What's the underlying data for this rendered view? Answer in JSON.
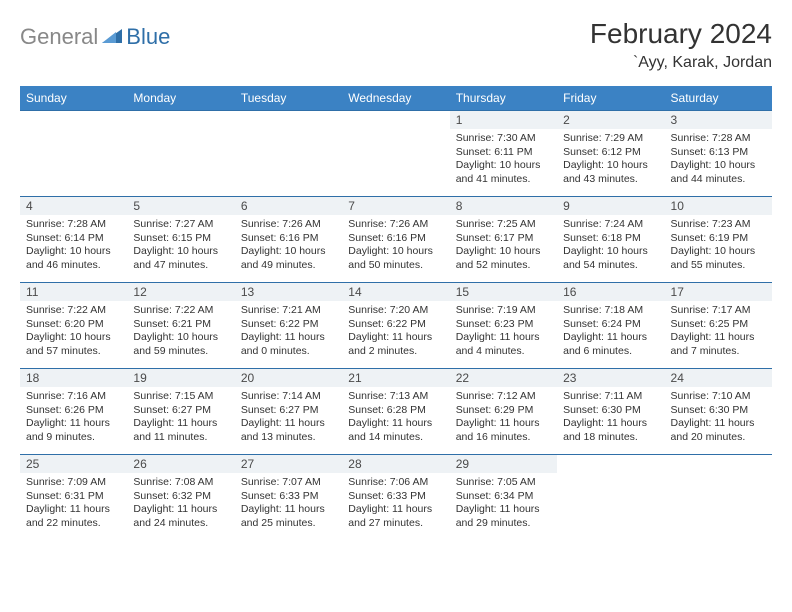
{
  "brand": {
    "text1": "General",
    "text2": "Blue",
    "icon_color": "#2f6fa8",
    "text1_color": "#888888",
    "text2_color": "#2f6fa8"
  },
  "title": "February 2024",
  "location": "`Ayy, Karak, Jordan",
  "colors": {
    "header_bg": "#3b82c4",
    "header_text": "#ffffff",
    "row_border": "#2f6fa8",
    "daynum_bg": "#eef2f5",
    "body_text": "#333333"
  },
  "day_names": [
    "Sunday",
    "Monday",
    "Tuesday",
    "Wednesday",
    "Thursday",
    "Friday",
    "Saturday"
  ],
  "weeks": [
    [
      {
        "n": "",
        "sr": "",
        "ss": "",
        "dl": ""
      },
      {
        "n": "",
        "sr": "",
        "ss": "",
        "dl": ""
      },
      {
        "n": "",
        "sr": "",
        "ss": "",
        "dl": ""
      },
      {
        "n": "",
        "sr": "",
        "ss": "",
        "dl": ""
      },
      {
        "n": "1",
        "sr": "Sunrise: 7:30 AM",
        "ss": "Sunset: 6:11 PM",
        "dl": "Daylight: 10 hours and 41 minutes."
      },
      {
        "n": "2",
        "sr": "Sunrise: 7:29 AM",
        "ss": "Sunset: 6:12 PM",
        "dl": "Daylight: 10 hours and 43 minutes."
      },
      {
        "n": "3",
        "sr": "Sunrise: 7:28 AM",
        "ss": "Sunset: 6:13 PM",
        "dl": "Daylight: 10 hours and 44 minutes."
      }
    ],
    [
      {
        "n": "4",
        "sr": "Sunrise: 7:28 AM",
        "ss": "Sunset: 6:14 PM",
        "dl": "Daylight: 10 hours and 46 minutes."
      },
      {
        "n": "5",
        "sr": "Sunrise: 7:27 AM",
        "ss": "Sunset: 6:15 PM",
        "dl": "Daylight: 10 hours and 47 minutes."
      },
      {
        "n": "6",
        "sr": "Sunrise: 7:26 AM",
        "ss": "Sunset: 6:16 PM",
        "dl": "Daylight: 10 hours and 49 minutes."
      },
      {
        "n": "7",
        "sr": "Sunrise: 7:26 AM",
        "ss": "Sunset: 6:16 PM",
        "dl": "Daylight: 10 hours and 50 minutes."
      },
      {
        "n": "8",
        "sr": "Sunrise: 7:25 AM",
        "ss": "Sunset: 6:17 PM",
        "dl": "Daylight: 10 hours and 52 minutes."
      },
      {
        "n": "9",
        "sr": "Sunrise: 7:24 AM",
        "ss": "Sunset: 6:18 PM",
        "dl": "Daylight: 10 hours and 54 minutes."
      },
      {
        "n": "10",
        "sr": "Sunrise: 7:23 AM",
        "ss": "Sunset: 6:19 PM",
        "dl": "Daylight: 10 hours and 55 minutes."
      }
    ],
    [
      {
        "n": "11",
        "sr": "Sunrise: 7:22 AM",
        "ss": "Sunset: 6:20 PM",
        "dl": "Daylight: 10 hours and 57 minutes."
      },
      {
        "n": "12",
        "sr": "Sunrise: 7:22 AM",
        "ss": "Sunset: 6:21 PM",
        "dl": "Daylight: 10 hours and 59 minutes."
      },
      {
        "n": "13",
        "sr": "Sunrise: 7:21 AM",
        "ss": "Sunset: 6:22 PM",
        "dl": "Daylight: 11 hours and 0 minutes."
      },
      {
        "n": "14",
        "sr": "Sunrise: 7:20 AM",
        "ss": "Sunset: 6:22 PM",
        "dl": "Daylight: 11 hours and 2 minutes."
      },
      {
        "n": "15",
        "sr": "Sunrise: 7:19 AM",
        "ss": "Sunset: 6:23 PM",
        "dl": "Daylight: 11 hours and 4 minutes."
      },
      {
        "n": "16",
        "sr": "Sunrise: 7:18 AM",
        "ss": "Sunset: 6:24 PM",
        "dl": "Daylight: 11 hours and 6 minutes."
      },
      {
        "n": "17",
        "sr": "Sunrise: 7:17 AM",
        "ss": "Sunset: 6:25 PM",
        "dl": "Daylight: 11 hours and 7 minutes."
      }
    ],
    [
      {
        "n": "18",
        "sr": "Sunrise: 7:16 AM",
        "ss": "Sunset: 6:26 PM",
        "dl": "Daylight: 11 hours and 9 minutes."
      },
      {
        "n": "19",
        "sr": "Sunrise: 7:15 AM",
        "ss": "Sunset: 6:27 PM",
        "dl": "Daylight: 11 hours and 11 minutes."
      },
      {
        "n": "20",
        "sr": "Sunrise: 7:14 AM",
        "ss": "Sunset: 6:27 PM",
        "dl": "Daylight: 11 hours and 13 minutes."
      },
      {
        "n": "21",
        "sr": "Sunrise: 7:13 AM",
        "ss": "Sunset: 6:28 PM",
        "dl": "Daylight: 11 hours and 14 minutes."
      },
      {
        "n": "22",
        "sr": "Sunrise: 7:12 AM",
        "ss": "Sunset: 6:29 PM",
        "dl": "Daylight: 11 hours and 16 minutes."
      },
      {
        "n": "23",
        "sr": "Sunrise: 7:11 AM",
        "ss": "Sunset: 6:30 PM",
        "dl": "Daylight: 11 hours and 18 minutes."
      },
      {
        "n": "24",
        "sr": "Sunrise: 7:10 AM",
        "ss": "Sunset: 6:30 PM",
        "dl": "Daylight: 11 hours and 20 minutes."
      }
    ],
    [
      {
        "n": "25",
        "sr": "Sunrise: 7:09 AM",
        "ss": "Sunset: 6:31 PM",
        "dl": "Daylight: 11 hours and 22 minutes."
      },
      {
        "n": "26",
        "sr": "Sunrise: 7:08 AM",
        "ss": "Sunset: 6:32 PM",
        "dl": "Daylight: 11 hours and 24 minutes."
      },
      {
        "n": "27",
        "sr": "Sunrise: 7:07 AM",
        "ss": "Sunset: 6:33 PM",
        "dl": "Daylight: 11 hours and 25 minutes."
      },
      {
        "n": "28",
        "sr": "Sunrise: 7:06 AM",
        "ss": "Sunset: 6:33 PM",
        "dl": "Daylight: 11 hours and 27 minutes."
      },
      {
        "n": "29",
        "sr": "Sunrise: 7:05 AM",
        "ss": "Sunset: 6:34 PM",
        "dl": "Daylight: 11 hours and 29 minutes."
      },
      {
        "n": "",
        "sr": "",
        "ss": "",
        "dl": ""
      },
      {
        "n": "",
        "sr": "",
        "ss": "",
        "dl": ""
      }
    ]
  ]
}
